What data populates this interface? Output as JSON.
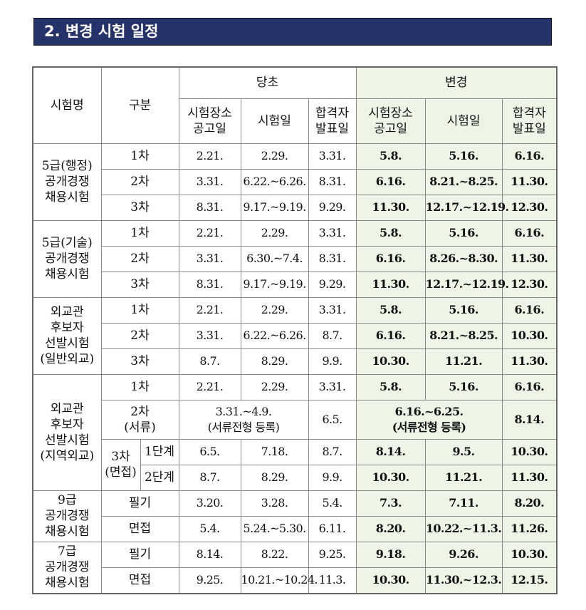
{
  "title": "2. 변경 시험 일정",
  "table": {
    "header": {
      "name": "시험명",
      "category": "구분",
      "original": "당초",
      "changed": "변경",
      "columns": [
        [
          "시험장소",
          "공고일"
        ],
        [
          "시험일"
        ],
        [
          "합격자",
          "발표일"
        ]
      ]
    },
    "groups": [
      {
        "name": [
          "5급(행정)",
          "공개경쟁",
          "채용시험"
        ],
        "rows": [
          {
            "label": [
              "1차"
            ],
            "original": [
              "2.21.",
              "2.29.",
              "3.31."
            ],
            "changed": [
              "5.8.",
              "5.16.",
              "6.16."
            ]
          },
          {
            "label": [
              "2차"
            ],
            "original": [
              "3.31.",
              "6.22.~6.26.",
              "8.31."
            ],
            "changed": [
              "6.16.",
              "8.21.~8.25.",
              "11.30."
            ]
          },
          {
            "label": [
              "3차"
            ],
            "original": [
              "8.31.",
              "9.17.~9.19.",
              "9.29."
            ],
            "changed": [
              "11.30.",
              "12.17.~12.19.",
              "12.30."
            ]
          }
        ]
      },
      {
        "name": [
          "5급(기술)",
          "공개경쟁",
          "채용시험"
        ],
        "rows": [
          {
            "label": [
              "1차"
            ],
            "original": [
              "2.21.",
              "2.29.",
              "3.31."
            ],
            "changed": [
              "5.8.",
              "5.16.",
              "6.16."
            ]
          },
          {
            "label": [
              "2차"
            ],
            "original": [
              "3.31.",
              "6.30.~7.4.",
              "8.31."
            ],
            "changed": [
              "6.16.",
              "8.26.~8.30.",
              "11.30."
            ]
          },
          {
            "label": [
              "3차"
            ],
            "original": [
              "8.31.",
              "9.17.~9.19.",
              "9.29."
            ],
            "changed": [
              "11.30.",
              "12.17.~12.19.",
              "12.30."
            ]
          }
        ]
      },
      {
        "name": [
          "외교관",
          "후보자",
          "선발시험",
          "(일반외교)"
        ],
        "rows": [
          {
            "label": [
              "1차"
            ],
            "original": [
              "2.21.",
              "2.29.",
              "3.31."
            ],
            "changed": [
              "5.8.",
              "5.16.",
              "6.16."
            ]
          },
          {
            "label": [
              "2차"
            ],
            "original": [
              "3.31.",
              "6.22.~6.26.",
              "8.7."
            ],
            "changed": [
              "6.16.",
              "8.21.~8.25.",
              "10.30."
            ]
          },
          {
            "label": [
              "3차"
            ],
            "original": [
              "8.7.",
              "8.29.",
              "9.9."
            ],
            "changed": [
              "10.30.",
              "11.21.",
              "11.30."
            ]
          }
        ]
      },
      {
        "name": [
          "외교관",
          "후보자",
          "선발시험",
          "(지역외교)"
        ],
        "rows": [
          {
            "label": [
              "1차"
            ],
            "original": [
              "2.21.",
              "2.29.",
              "3.31."
            ],
            "changed": [
              "5.8.",
              "5.16.",
              "6.16."
            ]
          },
          {
            "label": [
              "2차",
              "(서류)"
            ],
            "original_merged": [
              "3.31.~4.9.",
              "(서류전형 등록)"
            ],
            "original": [
              "6.5."
            ],
            "changed_merged": [
              "6.16.~6.25.",
              "(서류전형 등록)"
            ],
            "changed": [
              "8.14."
            ]
          },
          {
            "label": [
              "3차",
              "(면접)"
            ],
            "steps": [
              {
                "label": "1단계",
                "original": [
                  "6.5.",
                  "7.18.",
                  "8.7."
                ],
                "changed": [
                  "8.14.",
                  "9.5.",
                  "10.30."
                ]
              },
              {
                "label": "2단계",
                "original": [
                  "8.7.",
                  "8.29.",
                  "9.9."
                ],
                "changed": [
                  "10.30.",
                  "11.21.",
                  "11.30."
                ]
              }
            ]
          }
        ]
      },
      {
        "name": [
          "9급",
          "공개경쟁",
          "채용시험"
        ],
        "rows": [
          {
            "label": [
              "필기"
            ],
            "original": [
              "3.20.",
              "3.28.",
              "5.4."
            ],
            "changed": [
              "7.3.",
              "7.11.",
              "8.20."
            ]
          },
          {
            "label": [
              "면접"
            ],
            "original": [
              "5.4.",
              "5.24.~5.30.",
              "6.11."
            ],
            "changed": [
              "8.20.",
              "10.22.~11.3.",
              "11.26."
            ]
          }
        ]
      },
      {
        "name": [
          "7급",
          "공개경쟁",
          "채용시험"
        ],
        "rows": [
          {
            "label": [
              "필기"
            ],
            "original": [
              "8.14.",
              "8.22.",
              "9.25."
            ],
            "changed": [
              "9.18.",
              "9.26.",
              "10.30."
            ]
          },
          {
            "label": [
              "면접"
            ],
            "original": [
              "9.25.",
              "10.21.~10.24.",
              "11.3."
            ],
            "changed": [
              "10.30.",
              "11.30.~12.3.",
              "12.15."
            ]
          }
        ]
      }
    ]
  }
}
